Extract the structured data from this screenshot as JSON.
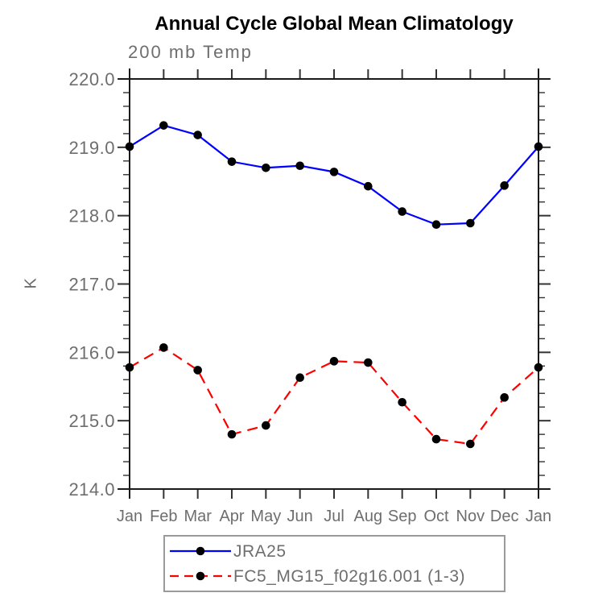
{
  "page": {
    "background": "#ffffff"
  },
  "chart_data": {
    "type": "line",
    "title": "Annual Cycle Global Mean Climatology",
    "left_subtitle": "200 mb Temp",
    "ylabel": "K",
    "xlabel": "",
    "categories": [
      "Jan",
      "Feb",
      "Mar",
      "Apr",
      "May",
      "Jun",
      "Jul",
      "Aug",
      "Sep",
      "Oct",
      "Nov",
      "Dec",
      "Jan"
    ],
    "ylim": [
      214.0,
      220.0
    ],
    "ytick_major_interval": 1.0,
    "ytick_minor_interval": 0.2,
    "ytick_labels": [
      "214.0",
      "215.0",
      "216.0",
      "217.0",
      "218.0",
      "219.0",
      "220.0"
    ],
    "grid": false,
    "legend_position": "bottom",
    "series": [
      {
        "name": "JRA25",
        "color": "#0000ff",
        "line_style": "solid",
        "marker": "filled-circle",
        "marker_color": "#000000",
        "values": [
          219.01,
          219.32,
          219.18,
          218.79,
          218.7,
          218.73,
          218.64,
          218.43,
          218.06,
          217.87,
          217.89,
          218.44,
          219.01
        ]
      },
      {
        "name": "FC5_MG15_f02g16.001 (1-3)",
        "color": "#ff0000",
        "line_style": "dashed",
        "marker": "filled-circle",
        "marker_color": "#000000",
        "values": [
          215.78,
          216.07,
          215.74,
          214.8,
          214.93,
          215.63,
          215.87,
          215.85,
          215.27,
          214.73,
          214.66,
          215.34,
          215.78
        ]
      }
    ]
  },
  "style": {
    "axis_color": "#1a1a1a",
    "tick_color": "#333333",
    "tick_label_color": "#6e6e6e",
    "title_color": "#000000",
    "subtitle_color": "#6e6e6e",
    "legend_border_color": "#9a9a9a",
    "legend_text_color": "#6e6e6e"
  }
}
